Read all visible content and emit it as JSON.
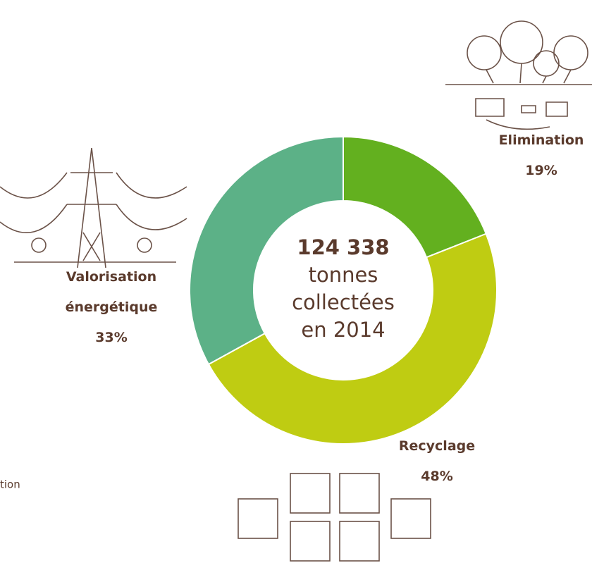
{
  "chart_data": {
    "type": "donut",
    "center_value": "124 338",
    "center_text": "tonnes collectées en 2014",
    "categories": [
      "Elimination",
      "Recyclage",
      "Valorisation énergétique"
    ],
    "values": [
      19,
      48,
      33
    ],
    "value_labels": [
      "19%",
      "48%",
      "33%"
    ],
    "colors": [
      "#63b01f",
      "#bfcc12",
      "#5cb187"
    ]
  },
  "side_text": "tion"
}
